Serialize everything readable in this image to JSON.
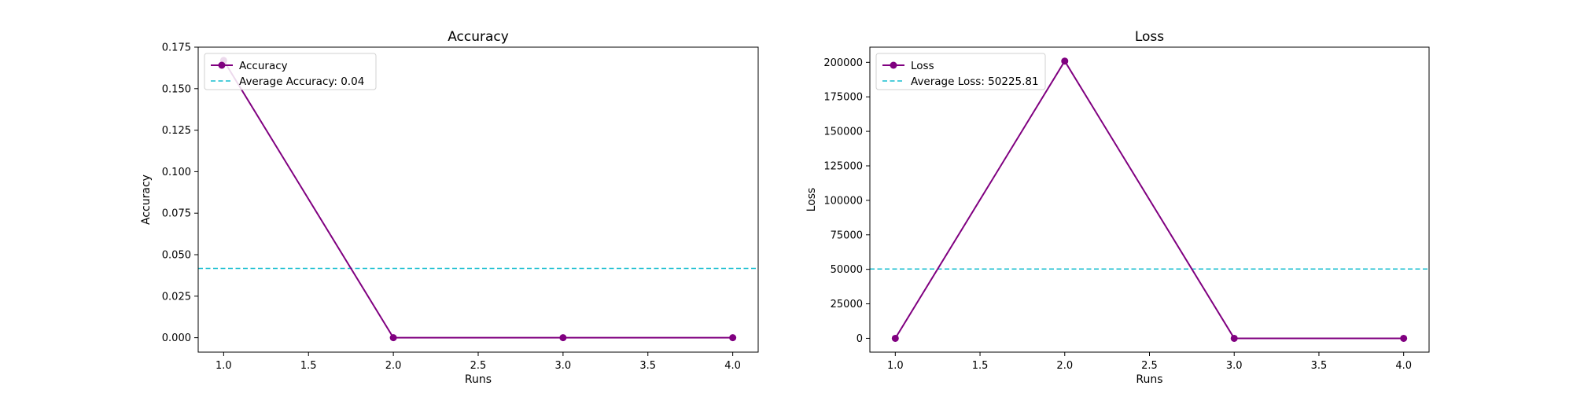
{
  "chart_data": [
    {
      "type": "line",
      "title": "Accuracy",
      "xlabel": "Runs",
      "ylabel": "Accuracy",
      "x": [
        1.0,
        2.0,
        3.0,
        4.0
      ],
      "xlim": [
        0.85,
        4.15
      ],
      "ylim": [
        -0.0087,
        0.175
      ],
      "xticks": [
        "1.0",
        "1.5",
        "2.0",
        "2.5",
        "3.0",
        "3.5",
        "4.0"
      ],
      "xtick_values": [
        1.0,
        1.5,
        2.0,
        2.5,
        3.0,
        3.5,
        4.0
      ],
      "yticks": [
        "0.000",
        "0.025",
        "0.050",
        "0.075",
        "0.100",
        "0.125",
        "0.150",
        "0.175"
      ],
      "ytick_values": [
        0.0,
        0.025,
        0.05,
        0.075,
        0.1,
        0.125,
        0.15,
        0.175
      ],
      "grid": false,
      "legend_position": "top-left",
      "series": [
        {
          "name": "Accuracy",
          "values": [
            0.167,
            0.0,
            0.0,
            0.0
          ],
          "color": "#800080",
          "marker": "circle"
        }
      ],
      "hlines": [
        {
          "name": "Average Accuracy: 0.04",
          "y": 0.0417,
          "color": "#17becf",
          "style": "dashed"
        }
      ]
    },
    {
      "type": "line",
      "title": "Loss",
      "xlabel": "Runs",
      "ylabel": "Loss",
      "x": [
        1.0,
        2.0,
        3.0,
        4.0
      ],
      "xlim": [
        0.85,
        4.15
      ],
      "ylim": [
        -10000,
        211000
      ],
      "xticks": [
        "1.0",
        "1.5",
        "2.0",
        "2.5",
        "3.0",
        "3.5",
        "4.0"
      ],
      "xtick_values": [
        1.0,
        1.5,
        2.0,
        2.5,
        3.0,
        3.5,
        4.0
      ],
      "yticks": [
        "0",
        "25000",
        "50000",
        "75000",
        "100000",
        "125000",
        "150000",
        "175000",
        "200000"
      ],
      "ytick_values": [
        0,
        25000,
        50000,
        75000,
        100000,
        125000,
        150000,
        175000,
        200000
      ],
      "grid": false,
      "legend_position": "top-left",
      "series": [
        {
          "name": "Loss",
          "values": [
            0,
            200903,
            0,
            0
          ],
          "color": "#800080",
          "marker": "circle"
        }
      ],
      "hlines": [
        {
          "name": "Average Loss: 50225.81",
          "y": 50225.81,
          "color": "#17becf",
          "style": "dashed"
        }
      ]
    }
  ]
}
